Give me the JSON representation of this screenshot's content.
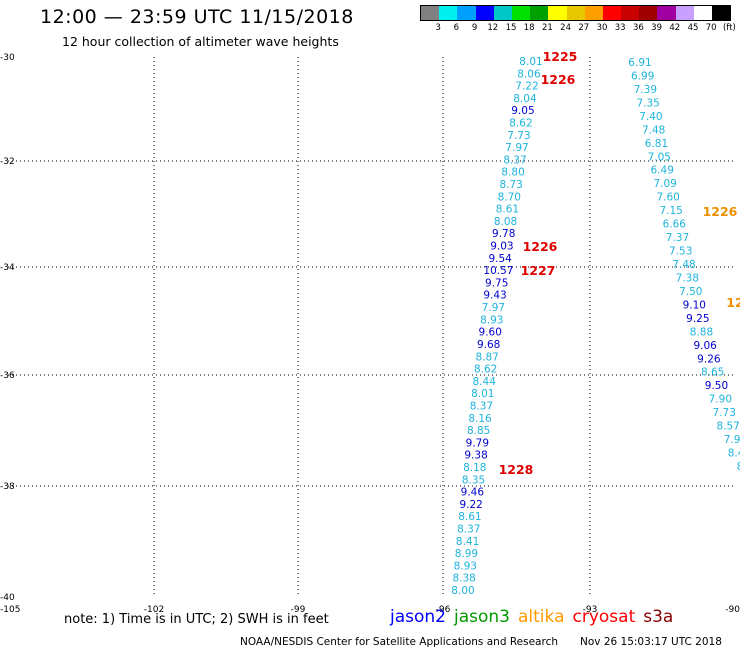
{
  "header": {
    "title": "12:00 — 23:59 UTC 11/15/2018",
    "subtitle": "12 hour collection of altimeter wave heights"
  },
  "legend": {
    "unit": "(ft)",
    "colors": [
      "#808080",
      "#00f0f0",
      "#00a0ff",
      "#0000ff",
      "#00c8c8",
      "#00e000",
      "#00a000",
      "#ffff00",
      "#e6c800",
      "#ffa000",
      "#ff0000",
      "#c80000",
      "#a00000",
      "#a000a0",
      "#c8a0ff",
      "#ffffff",
      "#000000"
    ],
    "ticks": [
      "3",
      "6",
      "9",
      "12",
      "15",
      "18",
      "21",
      "24",
      "27",
      "30",
      "33",
      "36",
      "39",
      "42",
      "45",
      "70"
    ]
  },
  "map": {
    "colors": {
      "jason2": "#0000cc",
      "s3a_light": "#1eb4dc",
      "time_red": "#e00000",
      "time_orange": "#f09000",
      "grid": "#000000"
    },
    "lat_ticks": [
      "-30",
      "-32",
      "-34",
      "-36",
      "-38",
      "-40"
    ],
    "lon_ticks": [
      "-105",
      "-102",
      "-99",
      "-96",
      "-93",
      "-90"
    ],
    "tracks": [
      {
        "name": "west",
        "labels": [
          {
            "v": "8.01",
            "c": "s3a_light"
          },
          {
            "v": "8.06",
            "c": "s3a_light"
          },
          {
            "v": "7.22",
            "c": "s3a_light"
          },
          {
            "v": "8.04",
            "c": "s3a_light"
          },
          {
            "v": "9.05",
            "c": "jason2"
          },
          {
            "v": "8.62",
            "c": "s3a_light"
          },
          {
            "v": "7.73",
            "c": "s3a_light"
          },
          {
            "v": "7.97",
            "c": "s3a_light"
          },
          {
            "v": "8.37",
            "c": "s3a_light"
          },
          {
            "v": "8.80",
            "c": "s3a_light"
          },
          {
            "v": "8.73",
            "c": "s3a_light"
          },
          {
            "v": "8.70",
            "c": "s3a_light"
          },
          {
            "v": "8.61",
            "c": "s3a_light"
          },
          {
            "v": "8.08",
            "c": "s3a_light"
          },
          {
            "v": "9.78",
            "c": "jason2"
          },
          {
            "v": "9.03",
            "c": "jason2"
          },
          {
            "v": "9.54",
            "c": "jason2"
          },
          {
            "v": "10.57",
            "c": "jason2"
          },
          {
            "v": "9.75",
            "c": "jason2"
          },
          {
            "v": "9.43",
            "c": "jason2"
          },
          {
            "v": "7.97",
            "c": "s3a_light"
          },
          {
            "v": "8.93",
            "c": "s3a_light"
          },
          {
            "v": "9.60",
            "c": "jason2"
          },
          {
            "v": "9.68",
            "c": "jason2"
          },
          {
            "v": "8.87",
            "c": "s3a_light"
          },
          {
            "v": "8.62",
            "c": "s3a_light"
          },
          {
            "v": "8.44",
            "c": "s3a_light"
          },
          {
            "v": "8.01",
            "c": "s3a_light"
          },
          {
            "v": "8.37",
            "c": "s3a_light"
          },
          {
            "v": "8.16",
            "c": "s3a_light"
          },
          {
            "v": "8.85",
            "c": "s3a_light"
          },
          {
            "v": "9.79",
            "c": "jason2"
          },
          {
            "v": "9.38",
            "c": "jason2"
          },
          {
            "v": "8.18",
            "c": "s3a_light"
          },
          {
            "v": "8.35",
            "c": "s3a_light"
          },
          {
            "v": "9.46",
            "c": "jason2"
          },
          {
            "v": "9.22",
            "c": "jason2"
          },
          {
            "v": "8.61",
            "c": "s3a_light"
          },
          {
            "v": "8.37",
            "c": "s3a_light"
          },
          {
            "v": "8.41",
            "c": "s3a_light"
          },
          {
            "v": "8.99",
            "c": "s3a_light"
          },
          {
            "v": "8.93",
            "c": "s3a_light"
          },
          {
            "v": "8.38",
            "c": "s3a_light"
          },
          {
            "v": "8.00",
            "c": "s3a_light"
          }
        ]
      },
      {
        "name": "east",
        "labels": [
          {
            "v": "6.91",
            "c": "s3a_light"
          },
          {
            "v": "6.99",
            "c": "s3a_light"
          },
          {
            "v": "7.39",
            "c": "s3a_light"
          },
          {
            "v": "7.35",
            "c": "s3a_light"
          },
          {
            "v": "7.40",
            "c": "s3a_light"
          },
          {
            "v": "7.48",
            "c": "s3a_light"
          },
          {
            "v": "6.81",
            "c": "s3a_light"
          },
          {
            "v": "7.05",
            "c": "s3a_light"
          },
          {
            "v": "6.49",
            "c": "s3a_light"
          },
          {
            "v": "7.09",
            "c": "s3a_light"
          },
          {
            "v": "7.60",
            "c": "s3a_light"
          },
          {
            "v": "7.15",
            "c": "s3a_light"
          },
          {
            "v": "6.66",
            "c": "s3a_light"
          },
          {
            "v": "7.37",
            "c": "s3a_light"
          },
          {
            "v": "7.53",
            "c": "s3a_light"
          },
          {
            "v": "7.48",
            "c": "s3a_light"
          },
          {
            "v": "7.38",
            "c": "s3a_light"
          },
          {
            "v": "7.50",
            "c": "s3a_light"
          },
          {
            "v": "9.10",
            "c": "jason2"
          },
          {
            "v": "9.25",
            "c": "jason2"
          },
          {
            "v": "8.88",
            "c": "s3a_light"
          },
          {
            "v": "9.06",
            "c": "jason2"
          },
          {
            "v": "9.26",
            "c": "jason2"
          },
          {
            "v": "8.65",
            "c": "s3a_light"
          },
          {
            "v": "9.50",
            "c": "jason2"
          },
          {
            "v": "7.90",
            "c": "s3a_light"
          },
          {
            "v": "7.73",
            "c": "s3a_light"
          },
          {
            "v": "8.57",
            "c": "s3a_light"
          },
          {
            "v": "7.9",
            "c": "s3a_light"
          },
          {
            "v": "8.4",
            "c": "s3a_light"
          },
          {
            "v": "8",
            "c": "s3a_light"
          }
        ]
      }
    ],
    "time_labels": [
      {
        "v": "1225",
        "c": "time_red"
      },
      {
        "v": "1226",
        "c": "time_red"
      },
      {
        "v": "1226",
        "c": "time_red"
      },
      {
        "v": "1227",
        "c": "time_red"
      },
      {
        "v": "1228",
        "c": "time_red"
      },
      {
        "v": "1226",
        "c": "time_orange"
      },
      {
        "v": "12",
        "c": "time_orange"
      }
    ]
  },
  "footer": {
    "note": "note: 1) Time is in UTC; 2) SWH is in feet",
    "satellites": [
      {
        "name": "jason2",
        "color": "#0000ff"
      },
      {
        "name": "jason3",
        "color": "#009a00"
      },
      {
        "name": "altika",
        "color": "#ff9a00"
      },
      {
        "name": "cryosat",
        "color": "#ff0000"
      },
      {
        "name": "s3a",
        "color": "#8b0000"
      }
    ],
    "credit": "NOAA/NESDIS Center for Satellite Applications and Research",
    "timestamp": "Nov 26 15:03:17 UTC 2018"
  }
}
